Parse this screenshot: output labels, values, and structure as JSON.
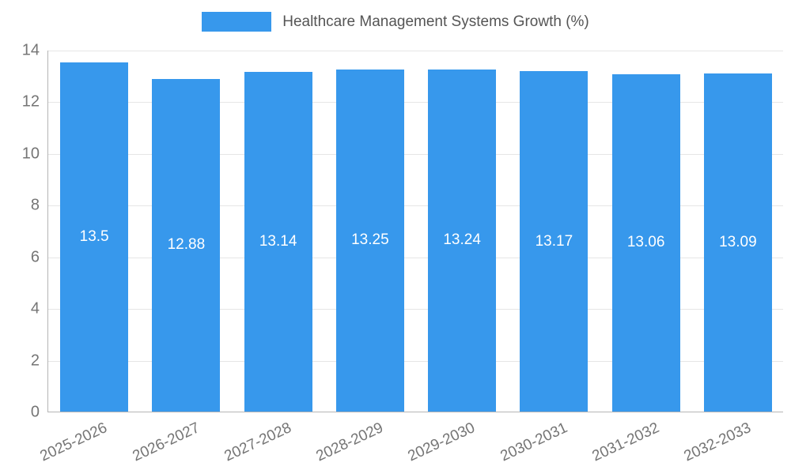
{
  "chart_data": {
    "type": "bar",
    "title": "Healthcare Management Systems Growth (%)",
    "categories": [
      "2025-2026",
      "2026-2027",
      "2027-2028",
      "2028-2029",
      "2029-2030",
      "2030-2031",
      "2031-2032",
      "2032-2033"
    ],
    "values": [
      13.5,
      12.88,
      13.14,
      13.25,
      13.24,
      13.17,
      13.06,
      13.09
    ],
    "value_labels": [
      "13.5",
      "12.88",
      "13.14",
      "13.25",
      "13.24",
      "13.17",
      "13.06",
      "13.09"
    ],
    "xlabel": "",
    "ylabel": "",
    "ylim": [
      0,
      14
    ],
    "yticks": [
      0,
      2,
      4,
      6,
      8,
      10,
      12,
      14
    ],
    "grid": true,
    "legend_position": "top",
    "bar_color": "#3798ec",
    "value_label_color": "#ffffff"
  }
}
